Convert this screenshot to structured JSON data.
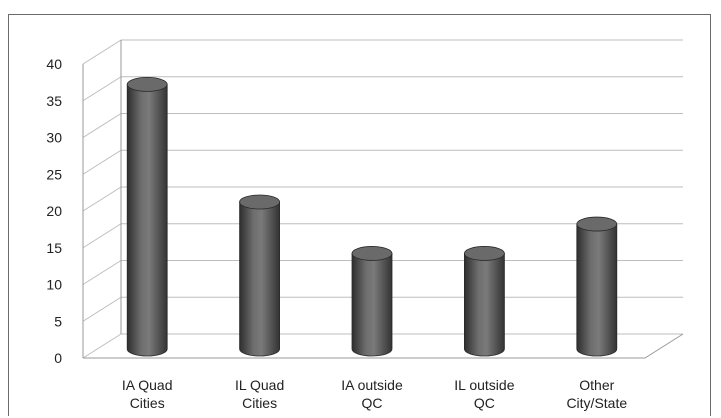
{
  "chart_data": {
    "type": "bar",
    "title": "",
    "xlabel": "",
    "ylabel": "",
    "categories": [
      [
        "IA Quad",
        "Cities"
      ],
      [
        "IL Quad",
        "Cities"
      ],
      [
        "IA outside",
        "QC"
      ],
      [
        "IL outside",
        "QC"
      ],
      [
        "Other",
        "City/State"
      ]
    ],
    "values": [
      36,
      20,
      13,
      13,
      17
    ],
    "ylim": [
      0,
      40
    ],
    "yticks": [
      "0",
      "5",
      "10",
      "15",
      "20",
      "25",
      "30",
      "35",
      "40"
    ],
    "grid": true,
    "legend": "none",
    "style": "3d-cylinder",
    "colors": {
      "bar": "#555555",
      "bar_light": "#8a8a8a",
      "bar_dark": "#2e2e2e",
      "grid": "#bdbdbd",
      "axis": "#9a9a9a"
    }
  }
}
